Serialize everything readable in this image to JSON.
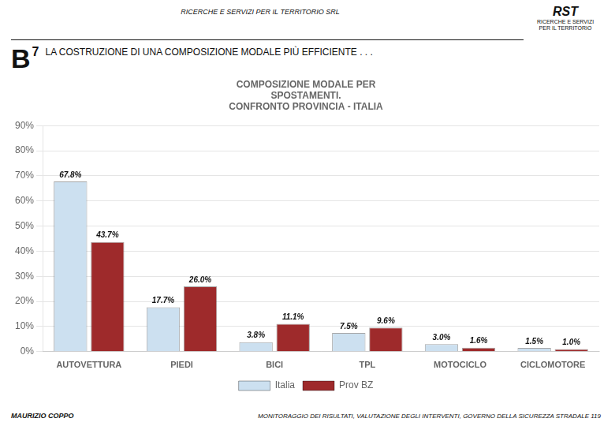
{
  "chart_data": {
    "type": "bar",
    "title": [
      "COMPOSIZIONE MODALE PER",
      "SPOSTAMENTI.",
      "CONFRONTO PROVINCIA - ITALIA"
    ],
    "annotations": [
      "RICERCHE E SERVIZI PER IL TERRITORIO SRL",
      "B",
      "7",
      "LA COSTRUZIONE DI UNA COMPOSIZIONE MODALE PIÙ EFFICIENTE . . .",
      "RST",
      "RICERCHE E SERVIZI",
      "PER IL TERRITORIO",
      "MAURIZIO COPPO",
      "MONITORAGGIO DEI RISULTATI, VALUTAZIONE DEGLI INTERVENTI, GOVERNO DELLA SICUREZZA STRADALE  119"
    ],
    "categories": [
      "AUTOVETTURA",
      "PIEDI",
      "BICI",
      "TPL",
      "MOTOCICLO",
      "CICLOMOTORE"
    ],
    "series": [
      {
        "name": "Italia",
        "color": "#cce0f0",
        "values": [
          67.8,
          17.7,
          3.8,
          7.5,
          3.0,
          1.5
        ],
        "value_labels": [
          "67.8%",
          "17.7%",
          "3.8%",
          "7.5%",
          "3.0%",
          "1.5%"
        ]
      },
      {
        "name": "Prov BZ",
        "color": "#9e2a2b",
        "values": [
          43.7,
          26.0,
          11.1,
          9.6,
          1.6,
          1.0
        ],
        "value_labels": [
          "43.7%",
          "26.0%",
          "11.1%",
          "9.6%",
          "1.6%",
          "1.0%"
        ]
      }
    ],
    "ylim": [
      0,
      90
    ],
    "yticks": [
      {
        "value": 0,
        "label": "0%"
      },
      {
        "value": 10,
        "label": "10%"
      },
      {
        "value": 20,
        "label": "20%"
      },
      {
        "value": 30,
        "label": "30%"
      },
      {
        "value": 40,
        "label": "40%"
      },
      {
        "value": 50,
        "label": "50%"
      },
      {
        "value": 60,
        "label": "60%"
      },
      {
        "value": 70,
        "label": "70%"
      },
      {
        "value": 80,
        "label": "80%"
      },
      {
        "value": 90,
        "label": "90%"
      }
    ],
    "grid": true,
    "legend": "bottom",
    "data_labels": true
  }
}
